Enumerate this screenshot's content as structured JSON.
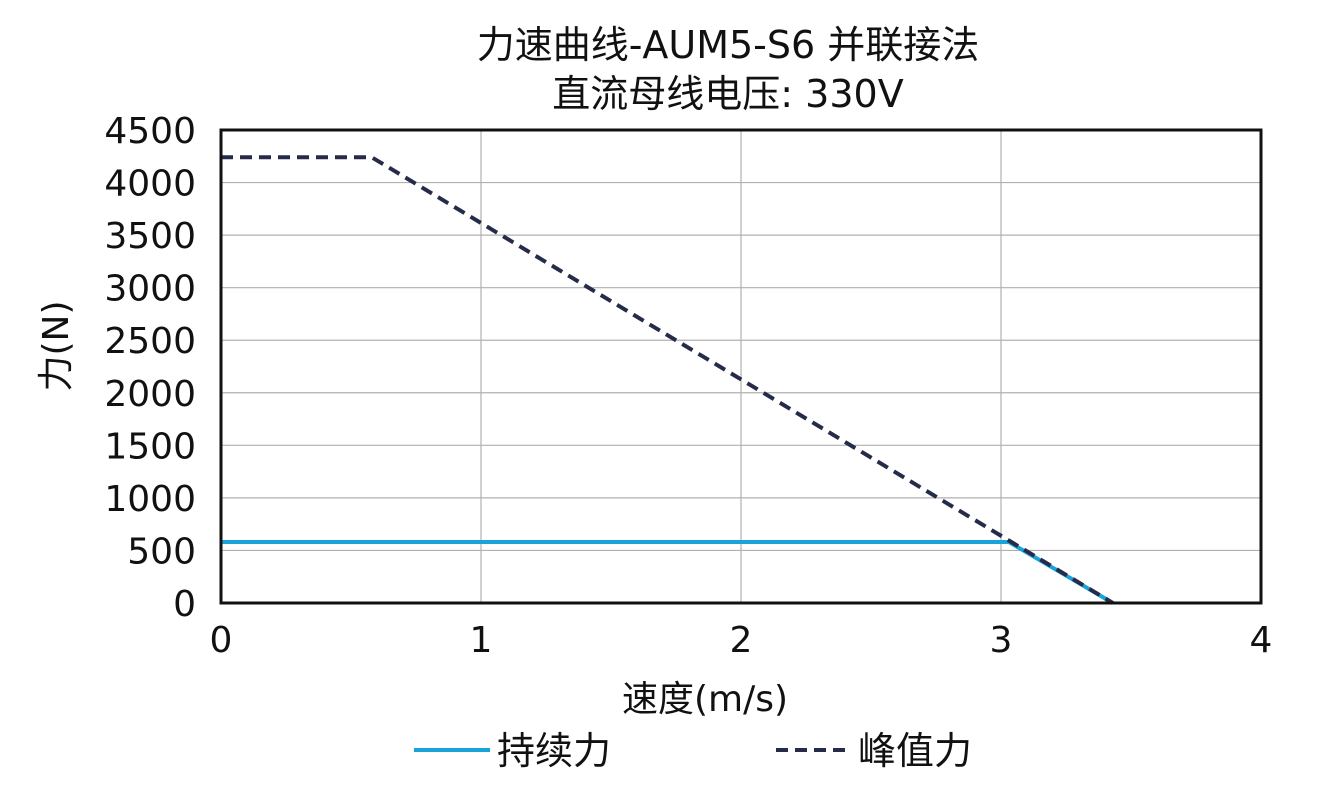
{
  "chart_data": {
    "type": "line",
    "title": "力速曲线-AUM5-S6 并联接法",
    "subtitle": "直流母线电压: 330V",
    "xlabel": "速度(m/s)",
    "ylabel": "力(N)",
    "xlim": [
      0,
      4
    ],
    "ylim": [
      0,
      4500
    ],
    "xticks": [
      0,
      1,
      2,
      3,
      4
    ],
    "yticks": [
      0,
      500,
      1000,
      1500,
      2000,
      2500,
      3000,
      3500,
      4000,
      4500
    ],
    "grid": true,
    "legend_position": "bottom",
    "series": [
      {
        "name": "持续力",
        "color": "#1aa3d9",
        "style": "solid",
        "x": [
          0,
          3.03,
          3.43
        ],
        "y": [
          580,
          580,
          0
        ]
      },
      {
        "name": "峰值力",
        "color": "#262b4a",
        "style": "dashed",
        "x": [
          0,
          0.58,
          3.43
        ],
        "y": [
          4240,
          4240,
          0
        ]
      }
    ]
  }
}
